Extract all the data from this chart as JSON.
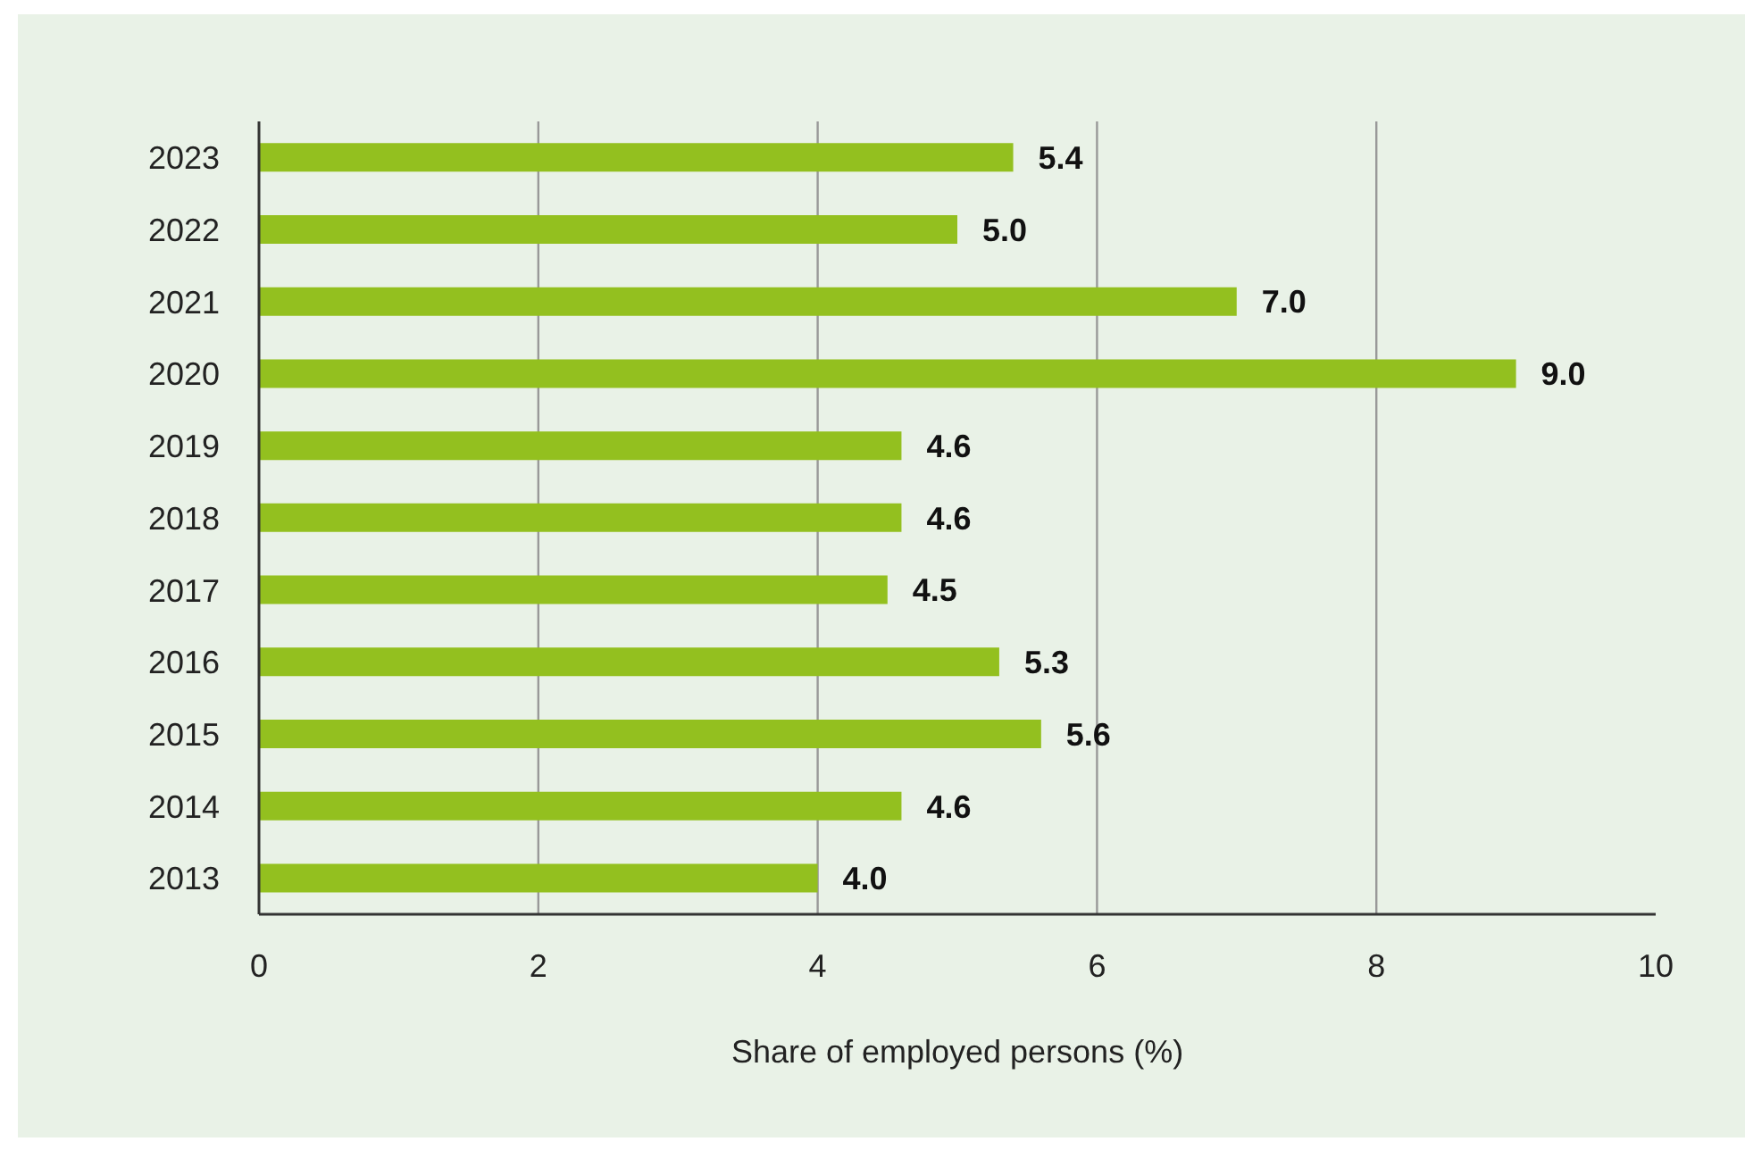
{
  "chart_data": {
    "type": "bar",
    "orientation": "horizontal",
    "xlabel": "Share of employed persons (%)",
    "categories": [
      "2023",
      "2022",
      "2021",
      "2020",
      "2019",
      "2018",
      "2017",
      "2016",
      "2015",
      "2014",
      "2013"
    ],
    "values": [
      5.4,
      5.0,
      7.0,
      9.0,
      4.6,
      4.6,
      4.5,
      5.3,
      5.6,
      4.6,
      4.0
    ],
    "value_labels": [
      "5.4",
      "5.0",
      "7.0",
      "9.0",
      "4.6",
      "4.6",
      "4.5",
      "5.3",
      "5.6",
      "4.6",
      "4.0"
    ],
    "color": "#93c01f",
    "xlim": [
      0,
      10
    ],
    "xticks": [
      0,
      2,
      4,
      6,
      8,
      10
    ],
    "grid": "x"
  }
}
